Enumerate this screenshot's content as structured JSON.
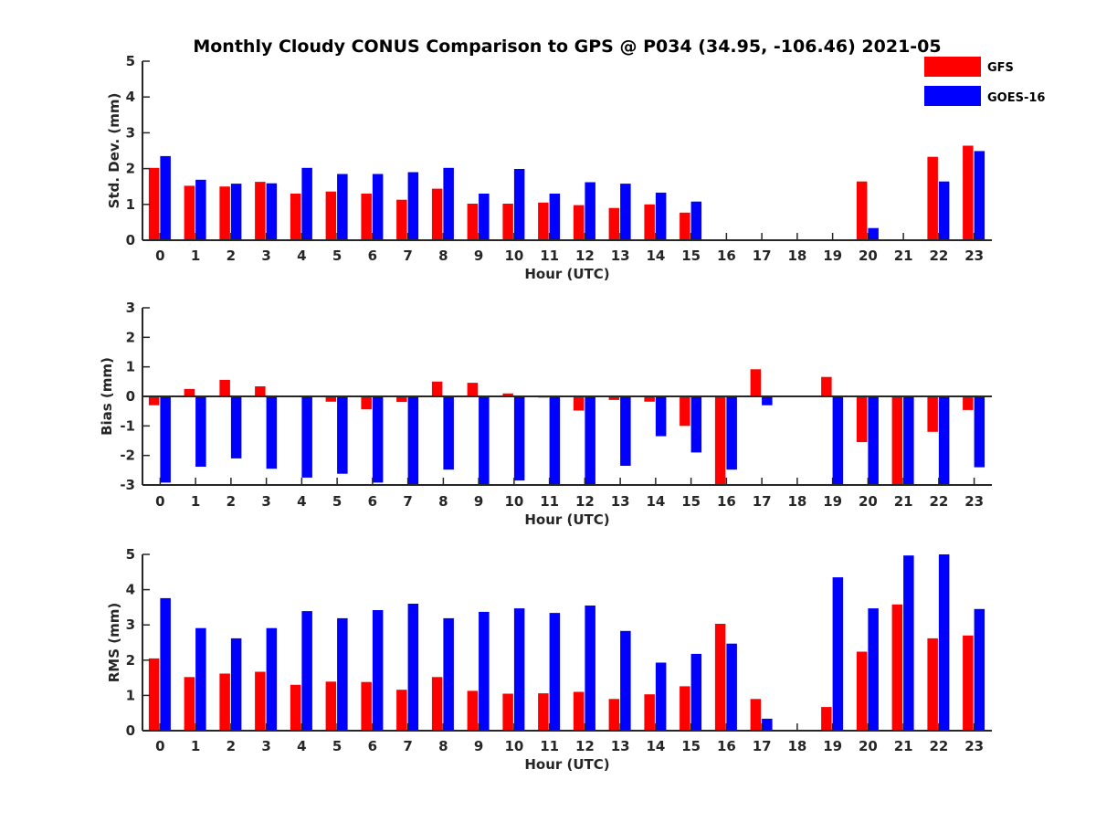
{
  "figure": {
    "title": "Monthly Cloudy CONUS Comparison to GPS @ P034 (34.95, -106.46) 2021-05"
  },
  "legend": {
    "placement": "top-right",
    "items": [
      {
        "label": "GFS",
        "color": "#ff0000"
      },
      {
        "label": "GOES-16",
        "color": "#0000ff"
      }
    ]
  },
  "chart_data": [
    {
      "type": "bar",
      "xlabel": "Hour (UTC)",
      "ylabel": "Std. Dev. (mm)",
      "ylim": [
        0,
        5
      ],
      "yticks": [
        "0",
        "1",
        "2",
        "3",
        "4",
        "5"
      ],
      "categories": [
        "0",
        "1",
        "2",
        "3",
        "4",
        "5",
        "6",
        "7",
        "8",
        "9",
        "10",
        "11",
        "12",
        "13",
        "14",
        "15",
        "16",
        "17",
        "18",
        "19",
        "20",
        "21",
        "22",
        "23"
      ],
      "series": [
        {
          "name": "GFS",
          "color": "#ff0000",
          "values": [
            2.02,
            1.52,
            1.5,
            1.63,
            1.3,
            1.36,
            1.3,
            1.13,
            1.44,
            1.02,
            1.02,
            1.05,
            0.98,
            0.9,
            1.0,
            0.77,
            0,
            0,
            0,
            0,
            1.64,
            0,
            2.33,
            2.64
          ]
        },
        {
          "name": "GOES-16",
          "color": "#0000ff",
          "values": [
            2.35,
            1.69,
            1.58,
            1.59,
            2.02,
            1.85,
            1.85,
            1.9,
            2.02,
            1.3,
            1.99,
            1.3,
            1.62,
            1.58,
            1.33,
            1.08,
            0,
            0,
            0,
            0,
            0.34,
            0,
            1.64,
            2.49
          ]
        }
      ]
    },
    {
      "type": "bar",
      "xlabel": "Hour (UTC)",
      "ylabel": "Bias (mm)",
      "ylim": [
        -3,
        3
      ],
      "yticks": [
        "-3",
        "-2",
        "-1",
        "0",
        "1",
        "2",
        "3"
      ],
      "categories": [
        "0",
        "1",
        "2",
        "3",
        "4",
        "5",
        "6",
        "7",
        "8",
        "9",
        "10",
        "11",
        "12",
        "13",
        "14",
        "15",
        "16",
        "17",
        "18",
        "19",
        "20",
        "21",
        "22",
        "23"
      ],
      "series": [
        {
          "name": "GFS",
          "color": "#ff0000",
          "values": [
            -0.3,
            0.25,
            0.56,
            0.34,
            0,
            -0.18,
            -0.44,
            -0.19,
            0.5,
            0.46,
            0.1,
            -0.04,
            -0.48,
            -0.12,
            -0.18,
            -1.0,
            -3.0,
            0.92,
            0,
            0.66,
            -1.55,
            -3.0,
            -1.2,
            -0.46
          ]
        },
        {
          "name": "GOES-16",
          "color": "#0000ff",
          "values": [
            -2.92,
            -2.38,
            -2.1,
            -2.45,
            -2.75,
            -2.62,
            -2.92,
            -3.0,
            -2.48,
            -3.0,
            -2.85,
            -3.0,
            -3.0,
            -2.35,
            -1.35,
            -1.9,
            -2.48,
            -0.3,
            0,
            -3.0,
            -3.0,
            -3.0,
            -3.0,
            -2.4
          ]
        }
      ]
    },
    {
      "type": "bar",
      "xlabel": "Hour (UTC)",
      "ylabel": "RMS (mm)",
      "ylim": [
        0,
        5
      ],
      "yticks": [
        "0",
        "1",
        "2",
        "3",
        "4",
        "5"
      ],
      "categories": [
        "0",
        "1",
        "2",
        "3",
        "4",
        "5",
        "6",
        "7",
        "8",
        "9",
        "10",
        "11",
        "12",
        "13",
        "14",
        "15",
        "16",
        "17",
        "18",
        "19",
        "20",
        "21",
        "22",
        "23"
      ],
      "series": [
        {
          "name": "GFS",
          "color": "#ff0000",
          "values": [
            2.05,
            1.52,
            1.62,
            1.67,
            1.3,
            1.39,
            1.38,
            1.16,
            1.52,
            1.13,
            1.05,
            1.06,
            1.1,
            0.9,
            1.03,
            1.26,
            3.03,
            0.9,
            0,
            0.67,
            2.24,
            3.58,
            2.62,
            2.7
          ]
        },
        {
          "name": "GOES-16",
          "color": "#0000ff",
          "values": [
            3.76,
            2.91,
            2.62,
            2.91,
            3.39,
            3.19,
            3.42,
            3.6,
            3.19,
            3.37,
            3.47,
            3.34,
            3.55,
            2.83,
            1.93,
            2.18,
            2.47,
            0.34,
            0,
            4.35,
            3.47,
            4.97,
            5.0,
            3.45
          ]
        }
      ]
    }
  ]
}
